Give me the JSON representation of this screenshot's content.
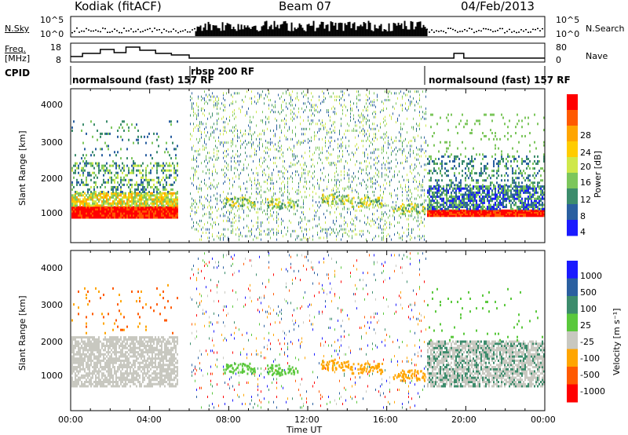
{
  "header": {
    "station": "Kodiak (fitACF)",
    "beam": "Beam 07",
    "date": "04/Feb/2013"
  },
  "noise_panel": {
    "left_label": "N.Sky",
    "right_label": "N.Search",
    "ticks_left": [
      "10^5",
      "10^0"
    ],
    "ticks_right": [
      "10^5",
      "10^0"
    ]
  },
  "freq_panel": {
    "left_label_1": "Freq.",
    "left_label_2": "[MHz]",
    "right_label": "Nave",
    "ticks_left": [
      "18",
      "8"
    ],
    "ticks_right": [
      "80",
      "0"
    ]
  },
  "cpid": {
    "label": "CPID",
    "modes": [
      "normalsound (fast) 157 RF",
      "rbsp 200 RF",
      "normalsound (fast) 157 RF"
    ]
  },
  "power_panel": {
    "ylabel": "Slant Range [km]",
    "yticks": [
      "4000",
      "3000",
      "2000",
      "1000"
    ],
    "colorbar_label": "Power [dB]",
    "colorbar_ticks": [
      "28",
      "24",
      "20",
      "16",
      "12",
      "8",
      "4"
    ],
    "colors": [
      "#ff0000",
      "#ff5a00",
      "#ffa500",
      "#ffcc00",
      "#cfe84a",
      "#7cc65c",
      "#3c8c6c",
      "#2a5fa0",
      "#1a1aff"
    ]
  },
  "velocity_panel": {
    "ylabel": "Slant Range [km]",
    "yticks": [
      "4000",
      "3000",
      "2000",
      "1000"
    ],
    "colorbar_label": "Velocity [m s⁻¹]",
    "colorbar_ticks": [
      "1000",
      "500",
      "100",
      "25",
      "-25",
      "-100",
      "-500",
      "-1000"
    ],
    "colors": [
      "#1a1aff",
      "#2a5fa0",
      "#3c8c6c",
      "#5ac83c",
      "#c8c8c0",
      "#ffa500",
      "#ff5a00",
      "#ff0000"
    ]
  },
  "time_axis": {
    "ticks": [
      "00:00",
      "04:00",
      "08:00",
      "12:00",
      "16:00",
      "20:00",
      "00:00"
    ],
    "xlabel": "Time UT"
  }
}
